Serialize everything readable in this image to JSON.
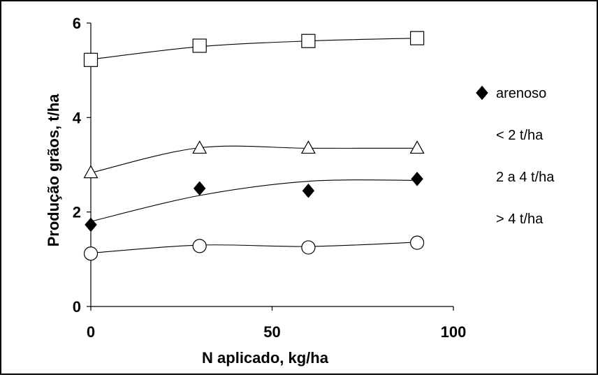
{
  "chart_data": {
    "type": "scatter",
    "xlabel": "N aplicado, kg/ha",
    "ylabel": "Produção grãos, t/ha",
    "xlim": [
      0,
      100
    ],
    "ylim": [
      0,
      6
    ],
    "xticks": [
      "0",
      "50",
      "100"
    ],
    "yticks": [
      "0",
      "2",
      "4",
      "6"
    ],
    "x": [
      0,
      30,
      60,
      90
    ],
    "series": [
      {
        "name": "arenoso",
        "marker": "diamond-filled",
        "values": [
          1.73,
          2.5,
          2.45,
          2.7
        ]
      },
      {
        "name": "< 2 t/ha",
        "marker": "circle-open",
        "values": [
          1.12,
          1.28,
          1.25,
          1.35
        ]
      },
      {
        "name": "2 a 4 t/ha",
        "marker": "triangle-open",
        "values": [
          2.83,
          3.35,
          3.35,
          3.35
        ]
      },
      {
        "name": "> 4 t/ha",
        "marker": "square-open",
        "values": [
          5.22,
          5.52,
          5.62,
          5.68
        ]
      }
    ],
    "trendlines": [
      {
        "series": "arenoso",
        "values": [
          1.8,
          2.35,
          2.65,
          2.67
        ]
      },
      {
        "series": "< 2 t/ha",
        "values": [
          1.13,
          1.3,
          1.27,
          1.36
        ]
      },
      {
        "series": "2 a 4 t/ha",
        "values": [
          2.83,
          3.36,
          3.35,
          3.35
        ]
      },
      {
        "series": "> 4 t/ha",
        "values": [
          5.23,
          5.5,
          5.62,
          5.68
        ]
      }
    ],
    "legend": {
      "position": "right"
    },
    "grid": false,
    "colors": {
      "line": "#000000",
      "marker_fill": "#000000",
      "marker_open_fill": "#ffffff"
    }
  }
}
